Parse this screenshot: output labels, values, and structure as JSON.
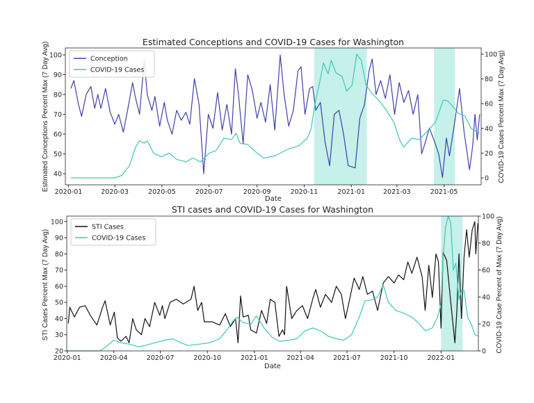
{
  "chart_data": [
    {
      "type": "line",
      "title": "Estimated Conceptions and COVID-19 Cases for Washington",
      "xlabel": "Date",
      "ylabel": "Estimated Conceptions Percent Max (7 Day Avg)",
      "ylabel_right": "COVID-19 Cases Percent Max (7 Day Avg)",
      "xlim": [
        "2019-12-28",
        "2021-06-18"
      ],
      "ylim": [
        34.4,
        103.5
      ],
      "ylim_right": [
        -5.6,
        105
      ],
      "xticks": [
        "2020-01",
        "2020-03",
        "2020-05",
        "2020-07",
        "2020-09",
        "2020-11",
        "2021-01",
        "2021-03",
        "2021-05"
      ],
      "yticks": [
        40,
        50,
        60,
        70,
        80,
        90,
        100
      ],
      "yticks_right": [
        0,
        20,
        40,
        60,
        80,
        100
      ],
      "legend_position": "top-left",
      "shaded_ranges": [
        [
          "2020-11-14",
          "2021-01-21"
        ],
        [
          "2021-04-18",
          "2021-05-15"
        ]
      ],
      "shade_color": "#c6f0ea",
      "series": [
        {
          "name": "Conception",
          "axis": "left",
          "color": "#3f3fa8",
          "x": [
            "2020-01-04",
            "2020-01-08",
            "2020-01-14",
            "2020-01-18",
            "2020-01-24",
            "2020-01-30",
            "2020-02-04",
            "2020-02-08",
            "2020-02-12",
            "2020-02-18",
            "2020-02-24",
            "2020-03-01",
            "2020-03-06",
            "2020-03-12",
            "2020-03-18",
            "2020-03-24",
            "2020-03-28",
            "2020-04-02",
            "2020-04-08",
            "2020-04-12",
            "2020-04-18",
            "2020-04-22",
            "2020-04-28",
            "2020-05-04",
            "2020-05-08",
            "2020-05-14",
            "2020-05-20",
            "2020-05-26",
            "2020-06-01",
            "2020-06-06",
            "2020-06-12",
            "2020-06-18",
            "2020-06-24",
            "2020-06-30",
            "2020-07-06",
            "2020-07-12",
            "2020-07-18",
            "2020-07-24",
            "2020-07-30",
            "2020-08-04",
            "2020-08-08",
            "2020-08-14",
            "2020-08-20",
            "2020-08-26",
            "2020-09-01",
            "2020-09-06",
            "2020-09-12",
            "2020-09-18",
            "2020-09-24",
            "2020-10-01",
            "2020-10-06",
            "2020-10-12",
            "2020-10-18",
            "2020-10-24",
            "2020-10-28",
            "2020-11-02",
            "2020-11-08",
            "2020-11-12",
            "2020-11-16",
            "2020-11-22",
            "2020-11-28",
            "2020-12-04",
            "2020-12-10",
            "2020-12-16",
            "2020-12-22",
            "2020-12-28",
            "2021-01-06",
            "2021-01-12",
            "2021-01-18",
            "2021-01-24",
            "2021-01-28",
            "2021-02-02",
            "2021-02-08",
            "2021-02-14",
            "2021-02-20",
            "2021-02-26",
            "2021-03-04",
            "2021-03-10",
            "2021-03-16",
            "2021-03-22",
            "2021-03-28",
            "2021-04-02",
            "2021-04-06",
            "2021-04-12",
            "2021-04-18",
            "2021-04-24",
            "2021-04-29",
            "2021-05-04",
            "2021-05-08",
            "2021-05-14",
            "2021-05-21",
            "2021-05-27",
            "2021-06-03",
            "2021-06-07",
            "2021-06-10",
            "2021-06-13",
            "2021-06-16"
          ],
          "y": [
            83,
            87,
            75,
            69,
            80,
            84,
            73,
            80,
            73,
            83,
            71,
            65,
            70,
            61,
            73,
            86,
            78,
            70,
            97,
            80,
            72,
            79,
            64,
            76,
            67,
            60,
            72,
            67,
            71,
            65,
            88,
            75,
            40,
            70,
            63,
            81,
            62,
            75,
            60,
            93,
            80,
            55,
            90,
            82,
            68,
            76,
            66,
            85,
            62,
            100,
            80,
            64,
            72,
            92,
            94,
            70,
            83,
            84,
            72,
            76,
            56,
            44,
            70,
            72,
            60,
            44,
            43,
            68,
            75,
            92,
            98,
            80,
            87,
            78,
            90,
            70,
            86,
            76,
            82,
            70,
            80,
            50,
            55,
            63,
            57,
            50,
            38,
            58,
            49,
            64,
            83,
            61,
            42,
            54,
            70,
            57,
            70
          ]
        },
        {
          "name": "COVID-19 Cases",
          "axis": "right",
          "color": "#3cc9b4",
          "x": [
            "2020-01-04",
            "2020-03-01",
            "2020-03-10",
            "2020-03-20",
            "2020-03-28",
            "2020-04-02",
            "2020-04-08",
            "2020-04-12",
            "2020-04-20",
            "2020-05-01",
            "2020-05-10",
            "2020-05-20",
            "2020-06-01",
            "2020-06-10",
            "2020-06-20",
            "2020-07-01",
            "2020-07-10",
            "2020-07-20",
            "2020-07-30",
            "2020-08-05",
            "2020-08-10",
            "2020-08-20",
            "2020-09-01",
            "2020-09-10",
            "2020-09-25",
            "2020-10-10",
            "2020-10-25",
            "2020-11-05",
            "2020-11-10",
            "2020-11-15",
            "2020-11-22",
            "2020-11-26",
            "2020-12-02",
            "2020-12-06",
            "2020-12-12",
            "2020-12-20",
            "2020-12-26",
            "2021-01-02",
            "2021-01-08",
            "2021-01-14",
            "2021-01-20",
            "2021-01-28",
            "2021-02-05",
            "2021-02-15",
            "2021-02-25",
            "2021-03-05",
            "2021-03-10",
            "2021-03-20",
            "2021-03-30",
            "2021-04-10",
            "2021-04-20",
            "2021-04-30",
            "2021-05-06",
            "2021-05-12",
            "2021-05-20",
            "2021-05-28",
            "2021-06-05",
            "2021-06-16"
          ],
          "y": [
            0,
            0,
            2,
            10,
            25,
            30,
            28,
            30,
            20,
            17,
            20,
            15,
            13,
            16,
            13,
            20,
            22,
            32,
            31,
            36,
            28,
            27,
            20,
            16,
            18,
            23,
            26,
            32,
            40,
            60,
            80,
            93,
            84,
            95,
            85,
            82,
            70,
            75,
            100,
            95,
            75,
            68,
            63,
            55,
            45,
            30,
            25,
            32,
            31,
            38,
            45,
            63,
            62,
            58,
            52,
            50,
            40,
            36
          ]
        }
      ]
    },
    {
      "type": "line",
      "title": "STI cases and COVID-19 Cases for Washington",
      "xlabel": "Date",
      "ylabel": "STI Cases Percent Max (7 Day Avg)",
      "ylabel_right": "COVID-19 Case Percent of Max (7 Day Avg)",
      "xlim": [
        "2019-12-31",
        "2022-03-15"
      ],
      "ylim": [
        20,
        103.4
      ],
      "ylim_right": [
        0,
        100
      ],
      "xticks": [
        "2020-01",
        "2020-04",
        "2020-07",
        "2020-10",
        "2021-01",
        "2021-04",
        "2021-07",
        "2021-10",
        "2022-01"
      ],
      "yticks": [
        20,
        30,
        40,
        50,
        60,
        70,
        80,
        90,
        100
      ],
      "yticks_right": [
        0,
        20,
        40,
        60,
        80,
        100
      ],
      "legend_position": "top-left",
      "shaded_ranges": [
        [
          "2022-01-01",
          "2022-02-12"
        ]
      ],
      "shade_color": "#c6f0ea",
      "series": [
        {
          "name": "STI Cases",
          "axis": "left",
          "color": "#111111",
          "x": [
            "2020-01-03",
            "2020-01-06",
            "2020-01-15",
            "2020-01-25",
            "2020-02-05",
            "2020-02-15",
            "2020-02-28",
            "2020-03-10",
            "2020-03-15",
            "2020-03-25",
            "2020-04-02",
            "2020-04-08",
            "2020-04-15",
            "2020-04-25",
            "2020-05-01",
            "2020-05-08",
            "2020-05-15",
            "2020-05-25",
            "2020-06-01",
            "2020-06-10",
            "2020-06-20",
            "2020-06-30",
            "2020-07-05",
            "2020-07-10",
            "2020-07-20",
            "2020-08-01",
            "2020-08-15",
            "2020-08-30",
            "2020-09-05",
            "2020-09-12",
            "2020-09-20",
            "2020-09-25",
            "2020-10-10",
            "2020-10-25",
            "2020-11-05",
            "2020-11-15",
            "2020-11-25",
            "2020-11-30",
            "2020-12-05",
            "2020-12-10",
            "2020-12-20",
            "2020-12-25",
            "2021-01-05",
            "2021-01-15",
            "2021-01-25",
            "2021-02-01",
            "2021-02-10",
            "2021-02-18",
            "2021-02-25",
            "2021-03-01",
            "2021-03-05",
            "2021-03-15",
            "2021-03-25",
            "2021-04-05",
            "2021-04-15",
            "2021-04-25",
            "2021-05-01",
            "2021-05-10",
            "2021-05-20",
            "2021-06-01",
            "2021-06-10",
            "2021-06-20",
            "2021-06-28",
            "2021-07-05",
            "2021-07-15",
            "2021-07-25",
            "2021-08-01",
            "2021-08-10",
            "2021-08-20",
            "2021-08-30",
            "2021-09-10",
            "2021-09-20",
            "2021-10-01",
            "2021-10-10",
            "2021-10-20",
            "2021-10-28",
            "2021-11-05",
            "2021-11-15",
            "2021-11-25",
            "2021-12-01",
            "2021-12-08",
            "2021-12-15",
            "2021-12-22",
            "2021-12-27",
            "2022-01-01",
            "2022-01-05",
            "2022-01-12",
            "2022-01-20",
            "2022-01-28",
            "2022-02-01",
            "2022-02-05",
            "2022-02-10",
            "2022-02-15",
            "2022-02-20",
            "2022-02-25",
            "2022-03-03",
            "2022-03-08",
            "2022-03-10",
            "2022-03-14"
          ],
          "y": [
            37,
            47,
            41,
            47,
            48,
            42,
            36,
            47,
            51,
            36,
            44,
            28,
            26,
            29,
            25,
            40,
            33,
            30,
            40,
            35,
            50,
            42,
            48,
            40,
            50,
            52,
            49,
            52,
            60,
            45,
            50,
            38,
            38,
            36,
            43,
            35,
            40,
            25,
            54,
            41,
            42,
            33,
            31,
            45,
            37,
            52,
            50,
            29,
            33,
            30,
            60,
            40,
            45,
            48,
            40,
            52,
            58,
            47,
            55,
            50,
            60,
            55,
            40,
            50,
            65,
            58,
            66,
            55,
            57,
            45,
            62,
            66,
            62,
            67,
            64,
            75,
            68,
            78,
            66,
            45,
            73,
            53,
            80,
            75,
            34,
            81,
            76,
            50,
            25,
            45,
            80,
            40,
            78,
            95,
            78,
            95,
            100,
            80,
            99
          ]
        },
        {
          "name": "COVID-19 Cases",
          "axis": "right",
          "color": "#3cc9b4",
          "x": [
            "2020-01-01",
            "2020-03-05",
            "2020-03-20",
            "2020-04-01",
            "2020-04-15",
            "2020-05-01",
            "2020-05-20",
            "2020-06-01",
            "2020-06-20",
            "2020-07-10",
            "2020-07-25",
            "2020-08-10",
            "2020-08-25",
            "2020-09-15",
            "2020-10-05",
            "2020-10-25",
            "2020-11-05",
            "2020-11-20",
            "2020-11-28",
            "2020-12-10",
            "2020-12-25",
            "2021-01-05",
            "2021-01-20",
            "2021-02-05",
            "2021-02-20",
            "2021-03-10",
            "2021-03-25",
            "2021-04-10",
            "2021-04-25",
            "2021-05-10",
            "2021-05-25",
            "2021-06-10",
            "2021-06-25",
            "2021-07-10",
            "2021-07-25",
            "2021-08-05",
            "2021-08-20",
            "2021-08-30",
            "2021-09-10",
            "2021-09-20",
            "2021-10-05",
            "2021-10-20",
            "2021-11-05",
            "2021-11-20",
            "2021-12-01",
            "2021-12-15",
            "2021-12-25",
            "2022-01-01",
            "2022-01-05",
            "2022-01-10",
            "2022-01-15",
            "2022-01-20",
            "2022-01-25",
            "2022-01-30",
            "2022-02-05",
            "2022-02-10",
            "2022-02-15",
            "2022-02-22",
            "2022-03-01",
            "2022-03-08",
            "2022-03-14"
          ],
          "y": [
            0,
            0,
            4,
            8,
            6,
            5,
            3,
            4,
            6,
            8,
            9,
            6,
            4,
            5,
            6,
            9,
            14,
            22,
            25,
            21,
            20,
            26,
            17,
            10,
            7,
            8,
            9,
            15,
            17,
            15,
            11,
            9,
            8,
            12,
            25,
            37,
            38,
            40,
            49,
            36,
            30,
            28,
            25,
            20,
            15,
            17,
            25,
            35,
            70,
            92,
            100,
            95,
            60,
            65,
            38,
            45,
            45,
            25,
            20,
            12,
            11
          ]
        }
      ]
    }
  ]
}
